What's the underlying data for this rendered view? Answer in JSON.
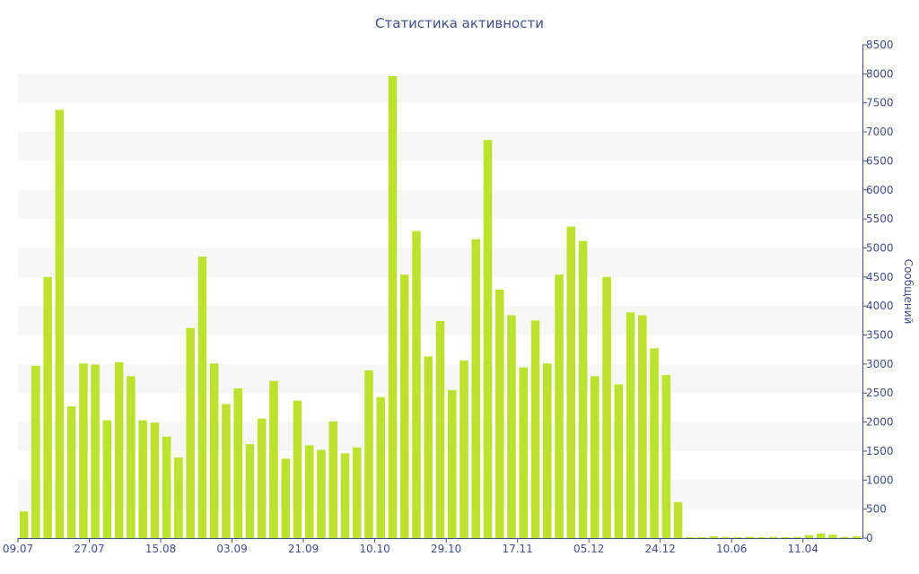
{
  "chart_data": {
    "type": "bar",
    "title": "Статистика активности",
    "xlabel": "",
    "ylabel": "Сообщений",
    "ylim": [
      0,
      8500
    ],
    "y_ticks": [
      0,
      500,
      1000,
      1500,
      2000,
      2500,
      3000,
      3500,
      4000,
      4500,
      5000,
      5500,
      6000,
      6500,
      7000,
      7500,
      8000,
      8500
    ],
    "y_axis_position": "right",
    "grid": "alternating horizontal bands",
    "bar_color": "#bde12f",
    "band_color": "#f7f7f7",
    "text_color": "#3f4f8a",
    "x_tick_labels": [
      {
        "index": 0,
        "label": "09.07"
      },
      {
        "index": 6,
        "label": "27.07"
      },
      {
        "index": 12,
        "label": "15.08"
      },
      {
        "index": 18,
        "label": "03.09"
      },
      {
        "index": 24,
        "label": "21.09"
      },
      {
        "index": 30,
        "label": "10.10"
      },
      {
        "index": 36,
        "label": "29.10"
      },
      {
        "index": 42,
        "label": "17.11"
      },
      {
        "index": 48,
        "label": "05.12"
      },
      {
        "index": 54,
        "label": "24.12"
      },
      {
        "index": 60,
        "label": "10.06"
      },
      {
        "index": 66,
        "label": "11.04"
      }
    ],
    "values": [
      460,
      2970,
      4500,
      7380,
      2270,
      3010,
      2990,
      2030,
      3030,
      2790,
      2030,
      1990,
      1750,
      1390,
      3620,
      4850,
      3010,
      2310,
      2580,
      1620,
      2060,
      2710,
      1370,
      2370,
      1600,
      1520,
      2010,
      1460,
      1560,
      2890,
      2430,
      7960,
      4540,
      5290,
      3130,
      3740,
      2550,
      3060,
      5150,
      6860,
      4280,
      3840,
      2940,
      3750,
      3010,
      4540,
      5370,
      5120,
      2790,
      4500,
      2650,
      3890,
      3840,
      3270,
      2810,
      620,
      10,
      10,
      30,
      20,
      10,
      20,
      10,
      20,
      10,
      20,
      50,
      80,
      60,
      20,
      30
    ]
  }
}
